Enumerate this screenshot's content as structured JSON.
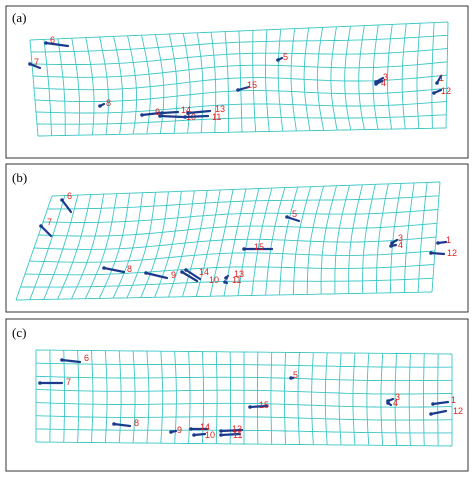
{
  "panels": [
    {
      "label": "(a)",
      "points": [
        "1",
        "12",
        "3",
        "4",
        "5",
        "6",
        "7",
        "8",
        "9",
        "10",
        "11",
        "13",
        "14",
        "15"
      ]
    },
    {
      "label": "(b)",
      "points": [
        "1",
        "12",
        "3",
        "4",
        "5",
        "6",
        "7",
        "8",
        "9",
        "10",
        "11",
        "13",
        "14",
        "15"
      ]
    },
    {
      "label": "(c)",
      "points": [
        "1",
        "12",
        "3",
        "4",
        "5",
        "6",
        "7",
        "8",
        "9",
        "10",
        "11",
        "13",
        "14",
        "15"
      ]
    }
  ]
}
